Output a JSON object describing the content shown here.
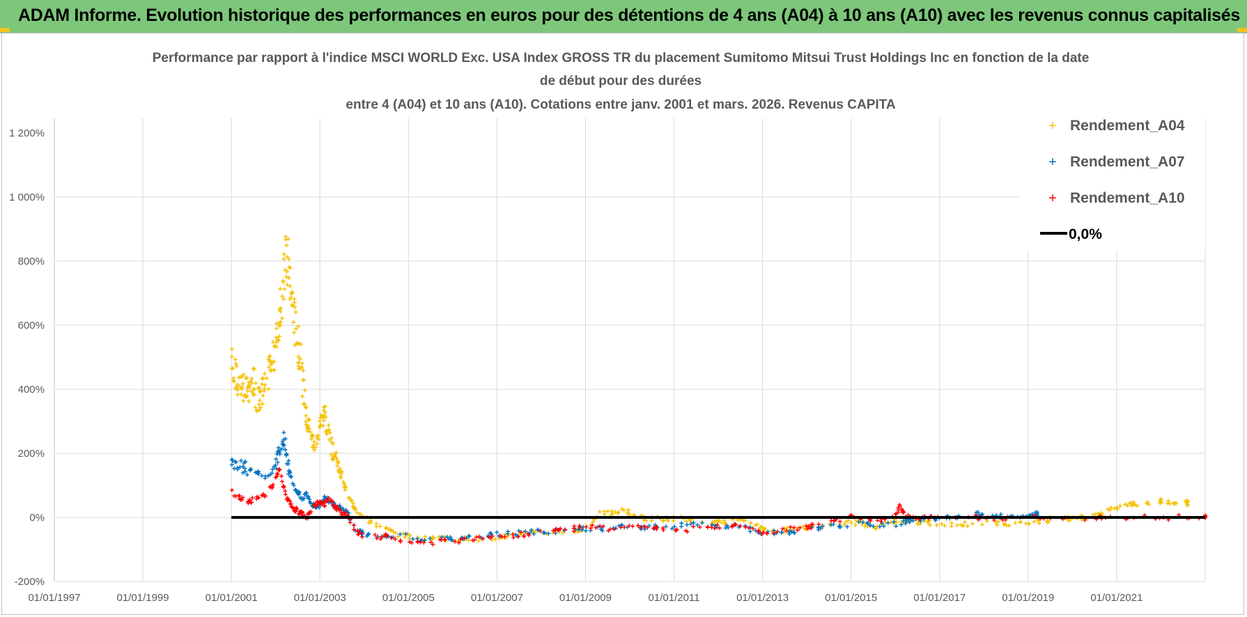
{
  "header": {
    "title": "ADAM Informe. Evolution historique des performances en euros pour des détentions de 4 ans (A04) à 10 ans (A10) avec les revenus connus capitalisés"
  },
  "colors": {
    "header_bg": "#7dc77a",
    "a04": "#f5c000",
    "a07": "#0070c0",
    "a10": "#ff0000",
    "zero": "#000000",
    "grid": "#d9d9d9"
  },
  "chart_data": {
    "type": "scatter",
    "title_lines": [
      "Performance par rapport à l'indice MSCI WORLD Exc. USA Index GROSS TR  du placement Sumitomo Mitsui Trust Holdings Inc en fonction de la date",
      "de début pour des durées",
      "entre 4 (A04) et 10 ans (A10). Cotations entre janv. 2001 et mars. 2026. Revenus CAPITA"
    ],
    "x_tick_labels": [
      "01/01/1997",
      "01/01/1999",
      "01/01/2001",
      "01/01/2003",
      "01/01/2005",
      "01/01/2007",
      "01/01/2009",
      "01/01/2011",
      "01/01/2013",
      "01/01/2015",
      "01/01/2017",
      "01/01/2019",
      "01/01/2021"
    ],
    "xlim": [
      1997.0,
      2023.0
    ],
    "x_grid_years": [
      1997,
      1999,
      2001,
      2003,
      2005,
      2007,
      2009,
      2011,
      2013,
      2015,
      2017,
      2019,
      2021,
      2023
    ],
    "y_tick_values": [
      1200,
      1000,
      800,
      600,
      400,
      200,
      0,
      -200
    ],
    "y_tick_labels": [
      "1 200%",
      "1 000%",
      "800%",
      "600%",
      "400%",
      "200%",
      "0%",
      "-200%"
    ],
    "ylim": [
      -200,
      1200
    ],
    "unit": "%",
    "series": [
      {
        "name": "Rendement_A04",
        "x": [
          2001.0,
          2001.1,
          2001.2,
          2001.3,
          2001.4,
          2001.5,
          2001.6,
          2001.7,
          2001.8,
          2001.9,
          2002.0,
          2002.08,
          2002.16,
          2002.24,
          2002.32,
          2002.4,
          2002.48,
          2002.56,
          2002.64,
          2002.72,
          2002.8,
          2002.9,
          2003.0,
          2003.1,
          2003.2,
          2003.3,
          2003.4,
          2003.5,
          2003.6,
          2003.75,
          2003.9,
          2004.1,
          2004.4,
          2004.7,
          2005.0,
          2005.5,
          2006.0,
          2006.5,
          2007.0,
          2007.5,
          2008.0,
          2008.5,
          2009.0,
          2009.3,
          2009.6,
          2009.9,
          2010.2,
          2010.5,
          2010.8,
          2011.2,
          2011.6,
          2012.0,
          2012.4,
          2012.8,
          2013.0,
          2013.3,
          2013.6,
          2014.0,
          2014.5,
          2015.0,
          2015.3,
          2015.6,
          2016.0,
          2016.3,
          2016.6,
          2017.0,
          2017.5,
          2018.0,
          2018.5,
          2019.0,
          2019.3,
          2019.6,
          2020.0,
          2020.3,
          2020.6,
          2021.0,
          2021.3,
          2021.6,
          2022.0,
          2022.3,
          2022.6
        ],
        "y": [
          480,
          440,
          420,
          400,
          380,
          420,
          360,
          400,
          430,
          480,
          520,
          620,
          700,
          820,
          760,
          640,
          560,
          500,
          380,
          300,
          250,
          220,
          290,
          330,
          250,
          200,
          170,
          120,
          80,
          40,
          10,
          -10,
          -30,
          -50,
          -60,
          -65,
          -68,
          -68,
          -60,
          -55,
          -45,
          -45,
          -35,
          10,
          15,
          20,
          0,
          -5,
          -5,
          -5,
          -10,
          -15,
          -10,
          -20,
          -40,
          -45,
          -40,
          -35,
          -25,
          -15,
          -20,
          -30,
          -10,
          -10,
          -15,
          -20,
          -20,
          -18,
          -18,
          -15,
          -10,
          -5,
          -5,
          0,
          10,
          30,
          40,
          45,
          50,
          50,
          45
        ]
      },
      {
        "name": "Rendement_A07",
        "x": [
          2001.0,
          2001.2,
          2001.4,
          2001.6,
          2001.8,
          2002.0,
          2002.1,
          2002.2,
          2002.3,
          2002.4,
          2002.5,
          2002.6,
          2002.7,
          2002.8,
          2002.9,
          2003.0,
          2003.1,
          2003.2,
          2003.3,
          2003.4,
          2003.5,
          2003.6,
          2003.8,
          2004.0,
          2004.5,
          2005.0,
          2005.5,
          2006.0,
          2006.5,
          2007.0,
          2007.5,
          2008.0,
          2008.5,
          2009.0,
          2009.5,
          2010.0,
          2010.5,
          2011.0,
          2011.5,
          2012.0,
          2012.5,
          2013.0,
          2013.5,
          2014.0,
          2014.5,
          2015.0,
          2015.5,
          2016.0,
          2016.3,
          2016.6,
          2017.0,
          2017.5,
          2018.0,
          2018.5,
          2019.0,
          2019.2
        ],
        "y": [
          180,
          160,
          150,
          140,
          120,
          160,
          220,
          250,
          150,
          100,
          80,
          60,
          70,
          40,
          30,
          40,
          60,
          50,
          40,
          30,
          30,
          20,
          -40,
          -50,
          -55,
          -60,
          -70,
          -65,
          -58,
          -52,
          -50,
          -45,
          -40,
          -35,
          -35,
          -30,
          -28,
          -28,
          -20,
          -25,
          -25,
          -50,
          -45,
          -40,
          -30,
          -20,
          -25,
          -20,
          -10,
          -5,
          -5,
          5,
          10,
          5,
          5,
          10
        ]
      },
      {
        "name": "Rendement_A10",
        "x": [
          2001.0,
          2001.2,
          2001.4,
          2001.6,
          2001.8,
          2002.0,
          2002.1,
          2002.2,
          2002.3,
          2002.4,
          2002.5,
          2002.6,
          2002.7,
          2002.8,
          2002.9,
          2003.0,
          2003.1,
          2003.2,
          2003.3,
          2003.4,
          2003.5,
          2003.6,
          2003.8,
          2004.0,
          2004.5,
          2005.0,
          2005.5,
          2006.0,
          2006.5,
          2007.0,
          2007.5,
          2008.0,
          2008.5,
          2009.0,
          2009.5,
          2010.0,
          2010.5,
          2011.0,
          2011.5,
          2012.0,
          2012.5,
          2013.0,
          2013.5,
          2014.0,
          2014.5,
          2015.0,
          2015.5,
          2016.0,
          2016.1,
          2016.2,
          2016.5,
          2017.0,
          2018.0,
          2019.0,
          2020.0,
          2021.0,
          2022.0,
          2023.0
        ],
        "y": [
          80,
          60,
          50,
          60,
          70,
          120,
          150,
          80,
          50,
          30,
          20,
          10,
          0,
          20,
          40,
          50,
          40,
          60,
          40,
          25,
          10,
          10,
          -40,
          -60,
          -60,
          -75,
          -78,
          -75,
          -65,
          -60,
          -55,
          -45,
          -40,
          -30,
          -35,
          -20,
          -30,
          -40,
          -35,
          -30,
          -25,
          -45,
          -40,
          -30,
          -20,
          5,
          -10,
          0,
          35,
          10,
          0,
          0,
          0,
          0,
          0,
          0,
          0,
          0
        ]
      },
      {
        "name": "0,0%",
        "type": "line",
        "x": [
          2001.0,
          2023.0
        ],
        "y": [
          0,
          0
        ]
      }
    ],
    "legend_position": "top-right"
  }
}
